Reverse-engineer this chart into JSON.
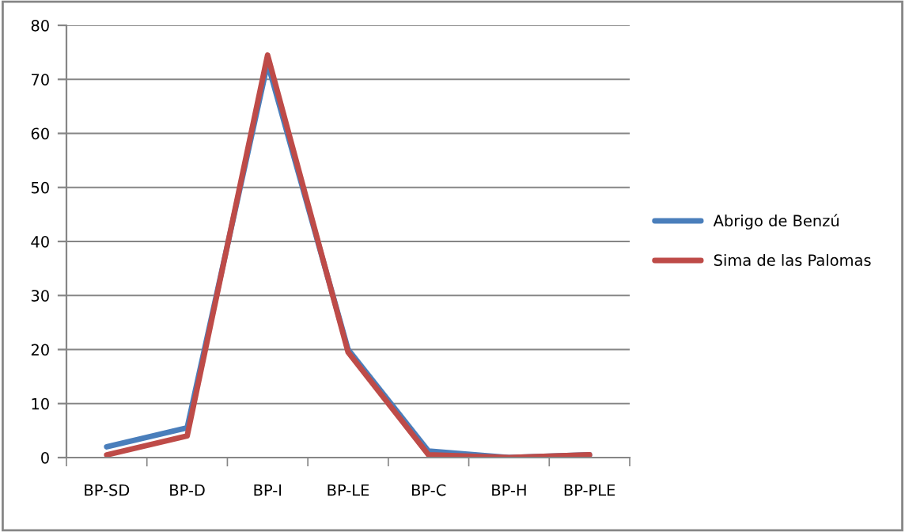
{
  "chart_data": {
    "type": "line",
    "categories": [
      "BP-SD",
      "BP-D",
      "BP-I",
      "BP-LE",
      "BP-C",
      "BP-H",
      "BP-PLE"
    ],
    "series": [
      {
        "name": "Abrigo de Benzú",
        "color": "#4a7ebb",
        "values": [
          2,
          5.5,
          73,
          20,
          1.2,
          0,
          0.5
        ]
      },
      {
        "name": "Sima de las Palomas",
        "color": "#be4b48",
        "values": [
          0.5,
          4,
          74.5,
          19.5,
          0.5,
          0,
          0.5
        ]
      }
    ],
    "ylim": [
      0,
      80
    ],
    "yticks": [
      0,
      10,
      20,
      30,
      40,
      50,
      60,
      70,
      80
    ],
    "grid": "y",
    "legend": "right",
    "marker": "none",
    "line_style": "solid"
  }
}
